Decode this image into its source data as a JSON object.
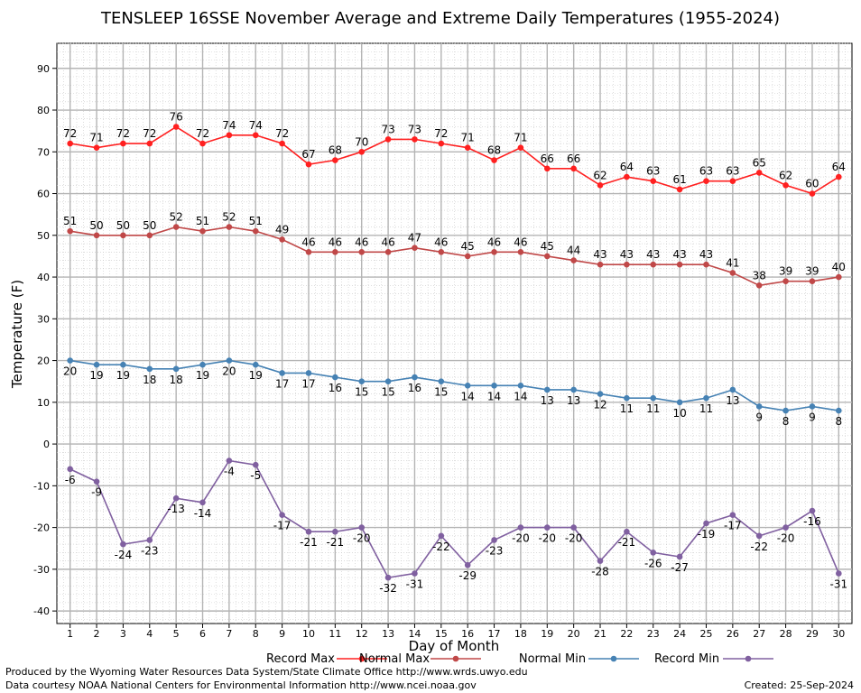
{
  "chart_data": {
    "type": "line",
    "title": "TENSLEEP 16SSE November Average and Extreme Daily Temperatures (1955-2024)",
    "xlabel": "Day of Month",
    "ylabel": "Temperature (F)",
    "x": [
      1,
      2,
      3,
      4,
      5,
      6,
      7,
      8,
      9,
      10,
      11,
      12,
      13,
      14,
      15,
      16,
      17,
      18,
      19,
      20,
      21,
      22,
      23,
      24,
      25,
      26,
      27,
      28,
      29,
      30
    ],
    "xlim": [
      0.5,
      30.5
    ],
    "ylim": [
      -43,
      96
    ],
    "yticks": [
      -40,
      -30,
      -20,
      -10,
      0,
      10,
      20,
      30,
      40,
      50,
      60,
      70,
      80,
      90
    ],
    "grid": true,
    "legend_position": "bottom",
    "series": [
      {
        "name": "Record Max",
        "color": "#ff2020",
        "label_position": "above",
        "values": [
          72,
          71,
          72,
          72,
          76,
          72,
          74,
          74,
          72,
          67,
          68,
          70,
          73,
          73,
          72,
          71,
          68,
          71,
          66,
          66,
          62,
          64,
          63,
          61,
          63,
          63,
          65,
          62,
          60,
          64
        ]
      },
      {
        "name": "Normal Max",
        "color": "#c04848",
        "label_position": "above",
        "values": [
          51,
          50,
          50,
          50,
          52,
          51,
          52,
          51,
          49,
          46,
          46,
          46,
          46,
          47,
          46,
          45,
          46,
          46,
          45,
          44,
          43,
          43,
          43,
          43,
          43,
          41,
          38,
          39,
          39,
          40
        ]
      },
      {
        "name": "Normal Min",
        "color": "#4682b4",
        "label_position": "below",
        "values": [
          20,
          19,
          19,
          18,
          18,
          19,
          20,
          19,
          17,
          17,
          16,
          15,
          15,
          16,
          15,
          14,
          14,
          14,
          13,
          13,
          12,
          11,
          11,
          10,
          11,
          13,
          9,
          8,
          9,
          8
        ]
      },
      {
        "name": "Record Min",
        "color": "#8060a0",
        "label_position": "below",
        "values": [
          -6,
          -9,
          -24,
          -23,
          -13,
          -14,
          -4,
          -5,
          -17,
          -21,
          -21,
          -20,
          -32,
          -31,
          -22,
          -29,
          -23,
          -20,
          -20,
          -20,
          -28,
          -21,
          -26,
          -27,
          -19,
          -17,
          -22,
          -20,
          -16,
          -31
        ]
      }
    ]
  },
  "footer": {
    "produced_by": "Produced by the Wyoming Water Resources Data System/State Climate Office http://www.wrds.uwyo.edu",
    "data_courtesy": "Data courtesy NOAA National Centers for Environmental Information http://www.ncei.noaa.gov",
    "created": "Created:  25-Sep-2024"
  }
}
